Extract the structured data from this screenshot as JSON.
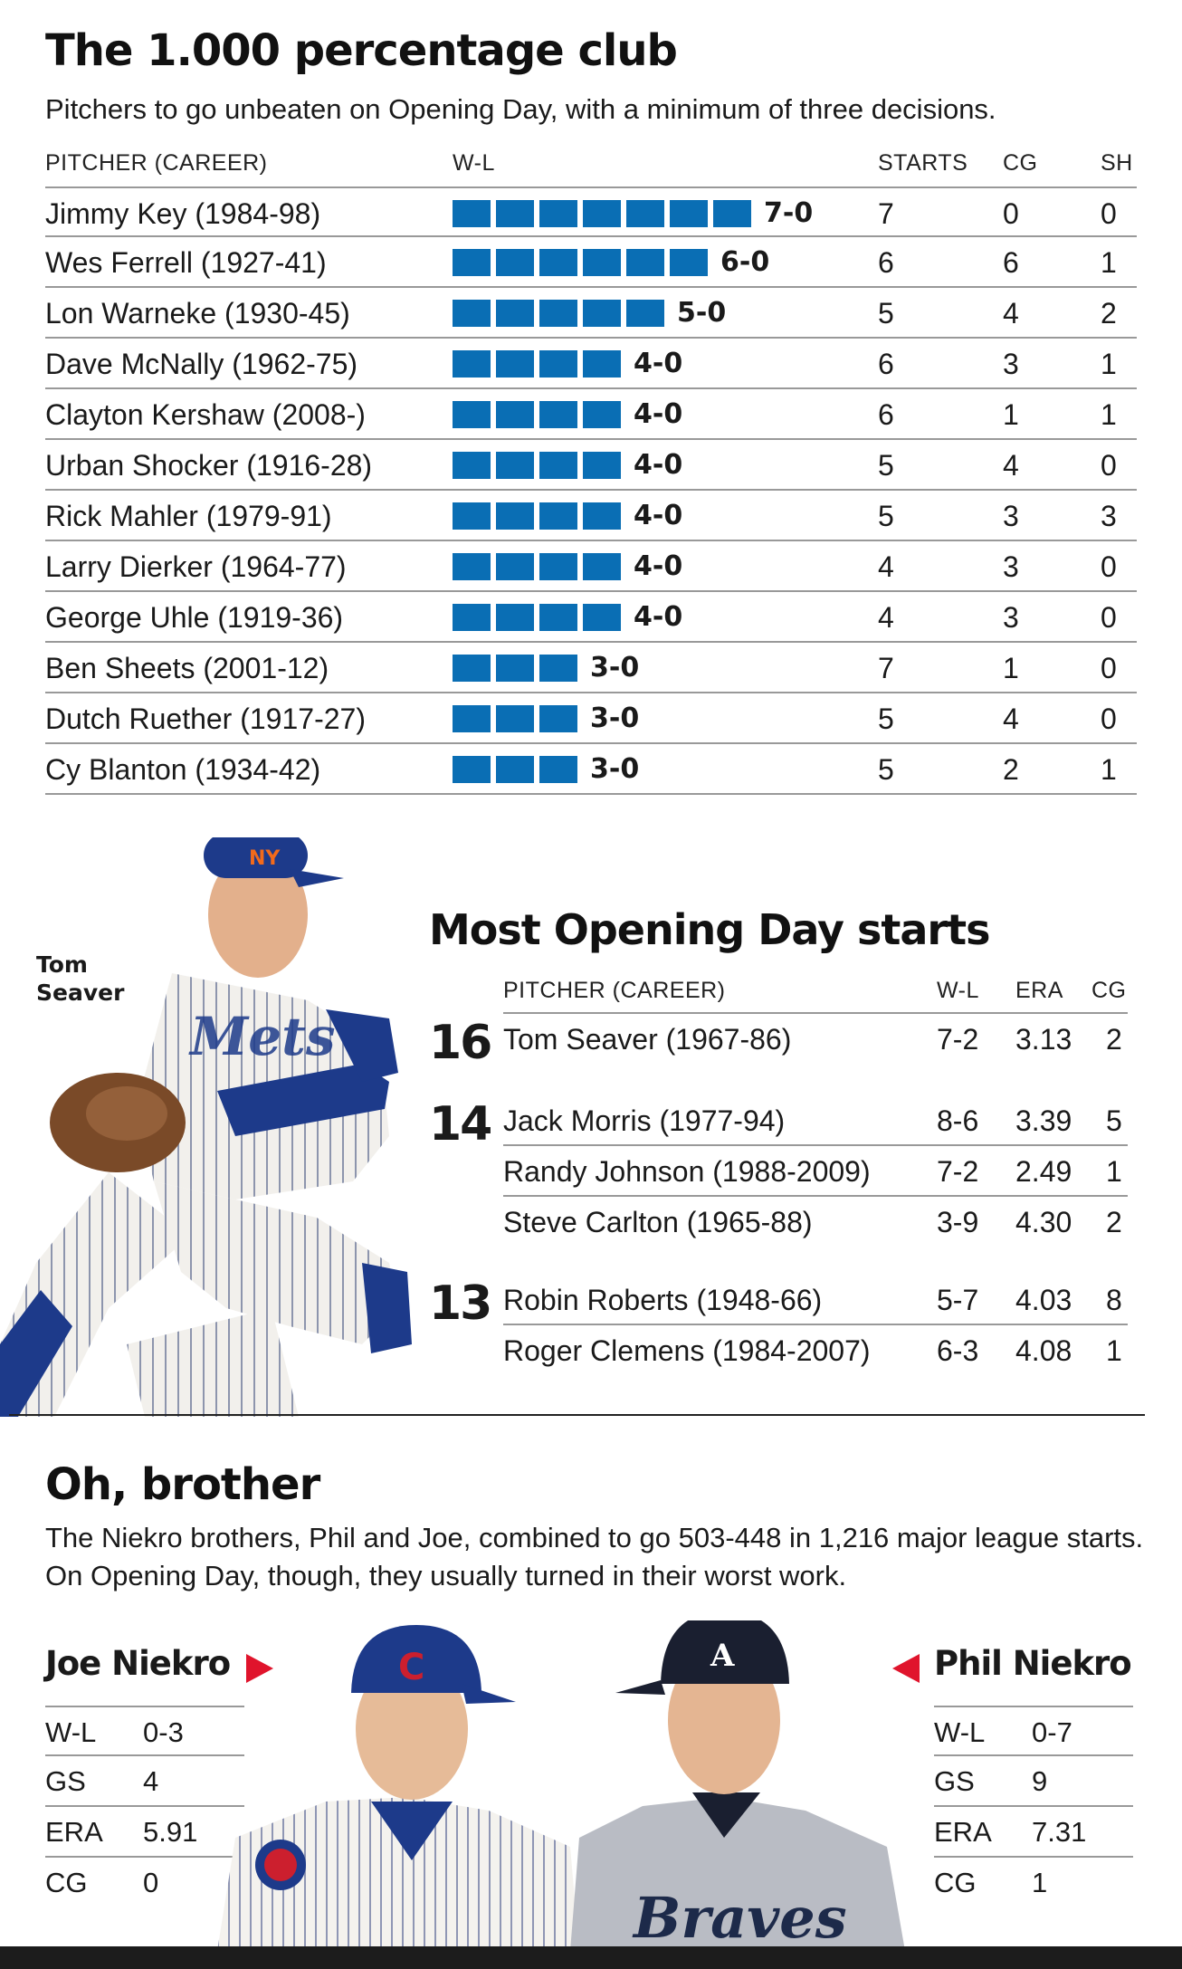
{
  "club": {
    "title": "The 1.000 percentage club",
    "dek": "Pitchers to go unbeaten on Opening Day, with a minimum of three decisions.",
    "headers": {
      "pitcher": "PITCHER (CAREER)",
      "wl": "W-L",
      "starts": "STARTS",
      "cg": "CG",
      "sh": "SH"
    },
    "bar_color": "#0a6eb4",
    "rows": [
      {
        "name": "Jimmy Key (1984-98)",
        "wins": 7,
        "wl": "7-0",
        "starts": "7",
        "cg": "0",
        "sh": "0"
      },
      {
        "name": "Wes Ferrell (1927-41)",
        "wins": 6,
        "wl": "6-0",
        "starts": "6",
        "cg": "6",
        "sh": "1"
      },
      {
        "name": "Lon Warneke (1930-45)",
        "wins": 5,
        "wl": "5-0",
        "starts": "5",
        "cg": "4",
        "sh": "2"
      },
      {
        "name": "Dave McNally (1962-75)",
        "wins": 4,
        "wl": "4-0",
        "starts": "6",
        "cg": "3",
        "sh": "1"
      },
      {
        "name": "Clayton Kershaw (2008-)",
        "wins": 4,
        "wl": "4-0",
        "starts": "6",
        "cg": "1",
        "sh": "1"
      },
      {
        "name": "Urban Shocker (1916-28)",
        "wins": 4,
        "wl": "4-0",
        "starts": "5",
        "cg": "4",
        "sh": "0"
      },
      {
        "name": "Rick Mahler (1979-91)",
        "wins": 4,
        "wl": "4-0",
        "starts": "5",
        "cg": "3",
        "sh": "3"
      },
      {
        "name": "Larry Dierker (1964-77)",
        "wins": 4,
        "wl": "4-0",
        "starts": "4",
        "cg": "3",
        "sh": "0"
      },
      {
        "name": "George Uhle (1919-36)",
        "wins": 4,
        "wl": "4-0",
        "starts": "4",
        "cg": "3",
        "sh": "0"
      },
      {
        "name": "Ben Sheets (2001-12)",
        "wins": 3,
        "wl": "3-0",
        "starts": "7",
        "cg": "1",
        "sh": "0"
      },
      {
        "name": "Dutch Ruether (1917-27)",
        "wins": 3,
        "wl": "3-0",
        "starts": "5",
        "cg": "4",
        "sh": "0"
      },
      {
        "name": "Cy Blanton (1934-42)",
        "wins": 3,
        "wl": "3-0",
        "starts": "5",
        "cg": "2",
        "sh": "1"
      }
    ]
  },
  "starts": {
    "title": "Most Opening Day starts",
    "photo_label": "Tom Seaver",
    "headers": {
      "pitcher": "PITCHER (CAREER)",
      "wl": "W-L",
      "era": "ERA",
      "cg": "CG"
    },
    "groups": [
      {
        "count": "16",
        "rows": [
          {
            "name": "Tom Seaver (1967-86)",
            "wl": "7-2",
            "era": "3.13",
            "cg": "2"
          }
        ]
      },
      {
        "count": "14",
        "rows": [
          {
            "name": "Jack Morris (1977-94)",
            "wl": "8-6",
            "era": "3.39",
            "cg": "5"
          },
          {
            "name": "Randy Johnson (1988-2009)",
            "wl": "7-2",
            "era": "2.49",
            "cg": "1"
          },
          {
            "name": "Steve Carlton (1965-88)",
            "wl": "3-9",
            "era": "4.30",
            "cg": "2"
          }
        ]
      },
      {
        "count": "13",
        "rows": [
          {
            "name": "Robin Roberts (1948-66)",
            "wl": "5-7",
            "era": "4.03",
            "cg": "8"
          },
          {
            "name": "Roger Clemens (1984-2007)",
            "wl": "6-3",
            "era": "4.08",
            "cg": "1"
          }
        ]
      }
    ]
  },
  "brothers": {
    "title": "Oh, brother",
    "dek": "The Niekro brothers, Phil and Joe, combined to go 503-448 in 1,216 major league starts. On Opening Day, though, they usually turned in their worst work.",
    "pointer_color": "#e0142c",
    "joe": {
      "name": "Joe Niekro",
      "stats": [
        {
          "k": "W-L",
          "v": "0-3"
        },
        {
          "k": "GS",
          "v": "4"
        },
        {
          "k": "ERA",
          "v": "5.91"
        },
        {
          "k": "CG",
          "v": "0"
        }
      ]
    },
    "phil": {
      "name": "Phil Niekro",
      "stats": [
        {
          "k": "W-L",
          "v": "0-7"
        },
        {
          "k": "GS",
          "v": "9"
        },
        {
          "k": "ERA",
          "v": "7.31"
        },
        {
          "k": "CG",
          "v": "1"
        }
      ]
    }
  }
}
